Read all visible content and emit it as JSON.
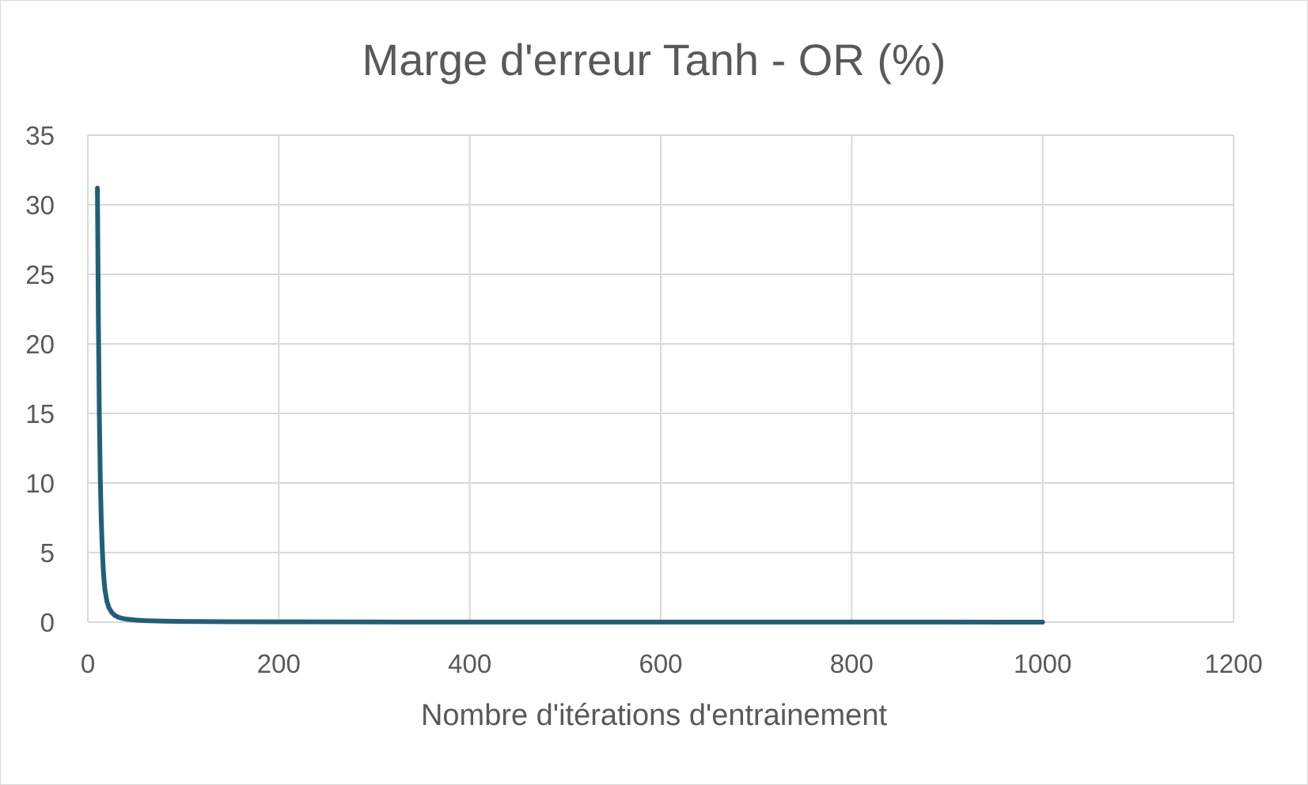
{
  "chart_data": {
    "type": "line",
    "title": "Marge d'erreur Tanh - OR (%)",
    "xlabel": "Nombre d'itérations d'entrainement",
    "ylabel": "",
    "xlim": [
      0,
      1200
    ],
    "ylim": [
      0,
      35
    ],
    "x_ticks": [
      0,
      200,
      400,
      600,
      800,
      1000,
      1200
    ],
    "y_ticks": [
      0,
      5,
      10,
      15,
      20,
      25,
      30,
      35
    ],
    "grid": true,
    "legend": "none",
    "series": [
      {
        "color": "#1f5f7a",
        "x": [
          10,
          11,
          12,
          13,
          14,
          15,
          16,
          17,
          18,
          20,
          22,
          25,
          28,
          32,
          36,
          40,
          50,
          60,
          80,
          100,
          150,
          200,
          300,
          400,
          500,
          600,
          700,
          800,
          900,
          1000
        ],
        "y": [
          31.2,
          22.0,
          15.0,
          10.5,
          7.5,
          5.5,
          4.0,
          3.0,
          2.3,
          1.5,
          1.05,
          0.7,
          0.5,
          0.35,
          0.27,
          0.22,
          0.15,
          0.11,
          0.07,
          0.05,
          0.03,
          0.02,
          0.012,
          0.008,
          0.006,
          0.005,
          0.004,
          0.0035,
          0.003,
          0.0025
        ]
      }
    ]
  }
}
